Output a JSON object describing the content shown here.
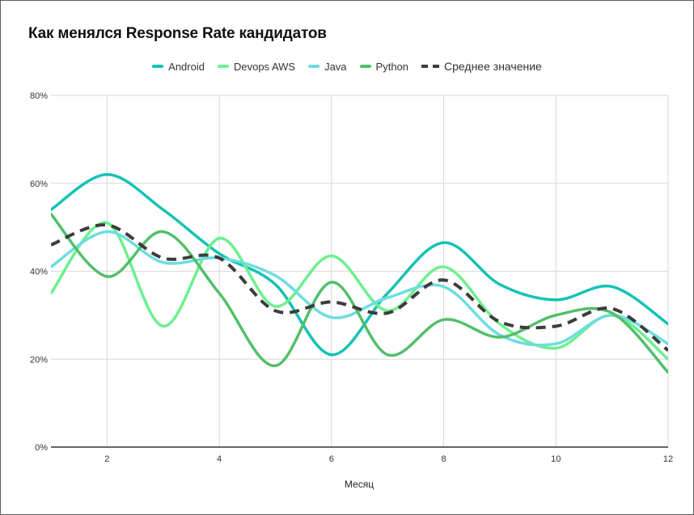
{
  "chart_data": {
    "type": "line",
    "title": "Как менялся Response Rate кандидатов",
    "xlabel": "Месяц",
    "ylabel": "",
    "x": [
      1,
      2,
      3,
      4,
      5,
      6,
      7,
      8,
      9,
      10,
      11,
      12
    ],
    "xlim": [
      1,
      12
    ],
    "xticks": [
      2,
      4,
      6,
      8,
      10,
      12
    ],
    "ylim": [
      0,
      80
    ],
    "yticks": [
      0,
      20,
      40,
      60,
      80
    ],
    "ytick_labels": [
      "0%",
      "20%",
      "40%",
      "60%",
      "80%"
    ],
    "grid": true,
    "legend_position": "top-center",
    "series": [
      {
        "name": "Android",
        "color": "#15c2b4",
        "dashed": false,
        "values": [
          54,
          62,
          54,
          44,
          37,
          21,
          35,
          46.5,
          37,
          33.5,
          36.5,
          28
        ]
      },
      {
        "name": "Devops AWS",
        "color": "#6cf08f",
        "dashed": false,
        "values": [
          35,
          51,
          27.5,
          47.5,
          32,
          43.5,
          31,
          41,
          28,
          22.5,
          30,
          20
        ]
      },
      {
        "name": "Java",
        "color": "#6ddde0",
        "dashed": false,
        "values": [
          41,
          49,
          42,
          43,
          39,
          29.5,
          34,
          36.5,
          25.5,
          23.5,
          30,
          23.5
        ]
      },
      {
        "name": "Python",
        "color": "#52bf6a",
        "dashed": false,
        "values": [
          53,
          38.8,
          49,
          35,
          18.5,
          37.5,
          21,
          29,
          25,
          30,
          30.5,
          17
        ]
      },
      {
        "name": "Среднее значение",
        "color": "#3c3c3c",
        "dashed": true,
        "values": [
          46,
          50.5,
          43,
          43,
          31,
          33,
          30.5,
          38,
          28.5,
          27.5,
          31.5,
          22
        ]
      }
    ]
  }
}
